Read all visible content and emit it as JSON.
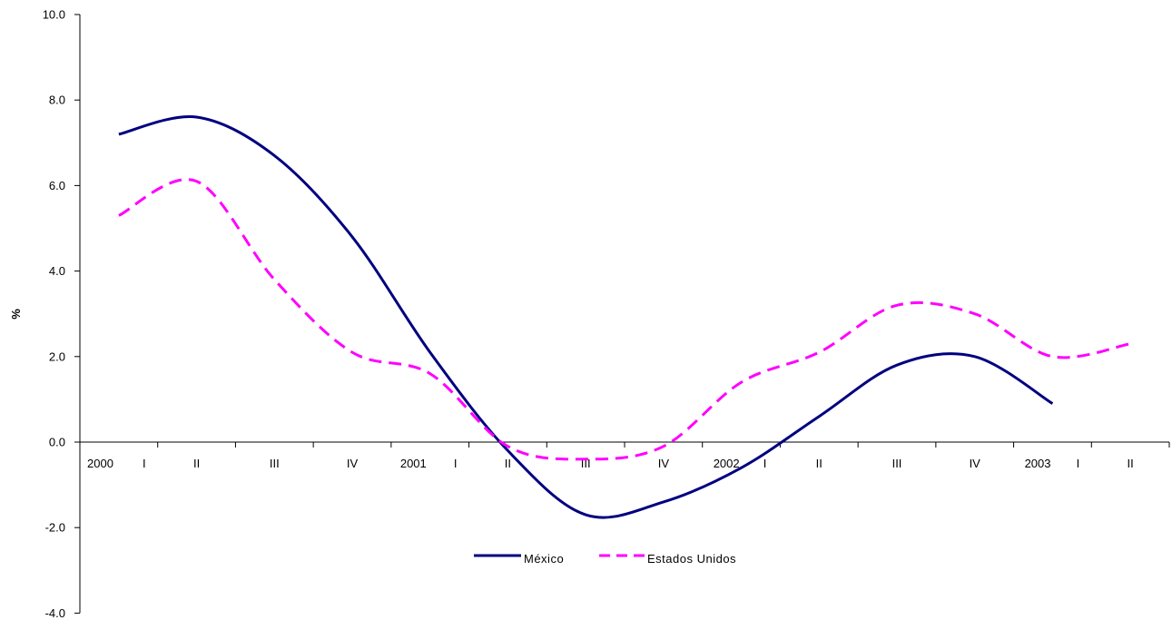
{
  "chart_data": {
    "type": "line",
    "title": "",
    "xlabel": "",
    "ylabel": "%",
    "ylim": [
      -4.0,
      10.0
    ],
    "y_ticks": [
      "10.0",
      "8.0",
      "6.0",
      "4.0",
      "2.0",
      "0.0",
      "-2.0",
      "-4.0"
    ],
    "y_tick_values": [
      10,
      8,
      6,
      4,
      2,
      0,
      -2,
      -4
    ],
    "x_tick_labels": [
      "2000",
      "I",
      "II",
      "III",
      "IV",
      "2001",
      "I",
      "II",
      "III",
      "IV",
      "2002",
      "I",
      "II",
      "III",
      "IV",
      "2003",
      "I",
      "II"
    ],
    "x": [
      "2000-I",
      "2000-II",
      "2000-III",
      "2000-IV",
      "2001-I",
      "2001-II",
      "2001-III",
      "2001-IV",
      "2002-I",
      "2002-II",
      "2002-III",
      "2002-IV",
      "2003-I",
      "2003-II"
    ],
    "grid": false,
    "legend_position": "bottom-center",
    "series": [
      {
        "name": "México",
        "color": "#000080",
        "style": "solid",
        "values": [
          7.2,
          7.6,
          6.7,
          4.8,
          2.1,
          -0.2,
          -1.7,
          -1.4,
          -0.6,
          0.6,
          1.8,
          2.0,
          0.9,
          null
        ]
      },
      {
        "name": "Estados Unidos",
        "color": "#ff00ff",
        "style": "dashed",
        "values": [
          5.3,
          6.1,
          3.8,
          2.1,
          1.6,
          -0.1,
          -0.4,
          -0.1,
          1.4,
          2.1,
          3.2,
          3.0,
          2.0,
          2.3
        ]
      }
    ]
  }
}
